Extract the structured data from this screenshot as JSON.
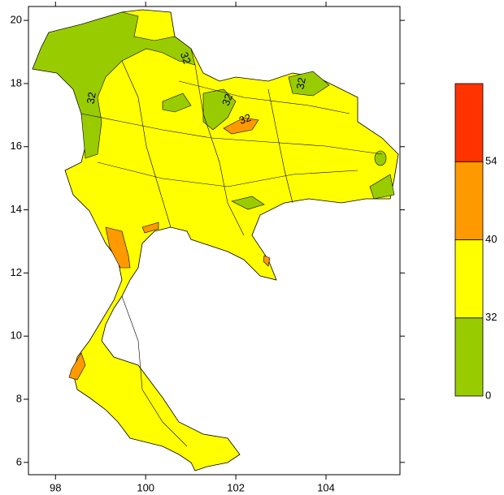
{
  "map": {
    "xlim": [
      97.4,
      105.64
    ],
    "ylim": [
      5.61,
      20.44
    ],
    "xticks": [
      98,
      100,
      102,
      104
    ],
    "yticks": [
      6,
      8,
      10,
      12,
      14,
      16,
      18,
      20
    ],
    "land_color": "#ffff00",
    "colorbar": {
      "colors": [
        "#99cc00",
        "#ffff00",
        "#ff9900",
        "#ff3300"
      ],
      "labels": [
        0,
        32,
        40,
        54
      ]
    },
    "contour_labels": [
      "32",
      "32",
      "32",
      "32",
      "32"
    ]
  }
}
